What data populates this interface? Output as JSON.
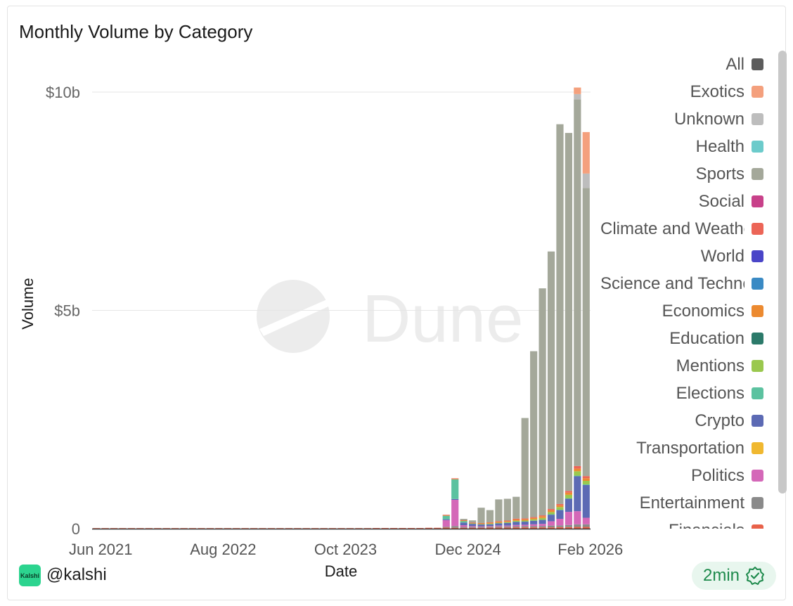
{
  "card": {
    "title": "Monthly Volume by Category",
    "footer_handle": "@kalshi",
    "logo_text": "Kalshi",
    "refresh_badge": "2min",
    "watermark_text": "Dune"
  },
  "chart_data": {
    "type": "bar",
    "stacked": true,
    "title": "Monthly Volume by Category",
    "xlabel": "Date",
    "ylabel": "Volume",
    "ylim": [
      0,
      10500000000
    ],
    "y_ticks": [
      {
        "value": 0,
        "label": "0"
      },
      {
        "value": 5000000000,
        "label": "$5b"
      },
      {
        "value": 10000000000,
        "label": "$10b"
      }
    ],
    "x_ticks": [
      "Jun 2021",
      "Aug 2022",
      "Oct 2023",
      "Dec 2024",
      "Feb 2026"
    ],
    "legend_position": "right",
    "grid": true,
    "categories": [
      "Jun 2021",
      "Jul 2021",
      "Aug 2021",
      "Sep 2021",
      "Oct 2021",
      "Nov 2021",
      "Dec 2021",
      "Jan 2022",
      "Feb 2022",
      "Mar 2022",
      "Apr 2022",
      "May 2022",
      "Jun 2022",
      "Jul 2022",
      "Aug 2022",
      "Sep 2022",
      "Oct 2022",
      "Nov 2022",
      "Dec 2022",
      "Jan 2023",
      "Feb 2023",
      "Mar 2023",
      "Apr 2023",
      "May 2023",
      "Jun 2023",
      "Jul 2023",
      "Aug 2023",
      "Sep 2023",
      "Oct 2023",
      "Nov 2023",
      "Dec 2023",
      "Jan 2024",
      "Feb 2024",
      "Mar 2024",
      "Apr 2024",
      "May 2024",
      "Jun 2024",
      "Jul 2024",
      "Aug 2024",
      "Sep 2024",
      "Oct 2024",
      "Nov 2024",
      "Dec 2024",
      "Jan 2025",
      "Feb 2025",
      "Mar 2025",
      "Apr 2025",
      "May 2025",
      "Jun 2025",
      "Jul 2025",
      "Aug 2025",
      "Sep 2025",
      "Oct 2025",
      "Nov 2025",
      "Dec 2025",
      "Jan 2026",
      "Feb 2026"
    ],
    "legend": [
      {
        "name": "All",
        "color": "#5c5c5c"
      },
      {
        "name": "Exotics",
        "color": "#f4a07d"
      },
      {
        "name": "Unknown",
        "color": "#bdbdbd"
      },
      {
        "name": "Health",
        "color": "#6ccbcb"
      },
      {
        "name": "Sports",
        "color": "#a4a89a"
      },
      {
        "name": "Social",
        "color": "#c8418a"
      },
      {
        "name": "Climate and Weather",
        "color": "#ec6557"
      },
      {
        "name": "World",
        "color": "#4a45c8"
      },
      {
        "name": "Science and Technology",
        "color": "#3a8ac4"
      },
      {
        "name": "Economics",
        "color": "#ec8a30"
      },
      {
        "name": "Education",
        "color": "#2c7a6a"
      },
      {
        "name": "Mentions",
        "color": "#9ac84e"
      },
      {
        "name": "Elections",
        "color": "#5cc2a0"
      },
      {
        "name": "Crypto",
        "color": "#5c6ab4"
      },
      {
        "name": "Transportation",
        "color": "#f0b830"
      },
      {
        "name": "Politics",
        "color": "#d468b8"
      },
      {
        "name": "Entertainment",
        "color": "#8a8a8a"
      },
      {
        "name": "Financials",
        "color": "#e8624a"
      }
    ],
    "series": [
      {
        "name": "Financials",
        "values": [
          5000000,
          5000000,
          5000000,
          5000000,
          5000000,
          5000000,
          5000000,
          5000000,
          5000000,
          5000000,
          5000000,
          5000000,
          5000000,
          5000000,
          8000000,
          8000000,
          8000000,
          8000000,
          8000000,
          8000000,
          8000000,
          8000000,
          8000000,
          10000000,
          10000000,
          10000000,
          10000000,
          10000000,
          12000000,
          12000000,
          12000000,
          12000000,
          15000000,
          15000000,
          15000000,
          15000000,
          15000000,
          15000000,
          20000000,
          20000000,
          25000000,
          20000000,
          20000000,
          20000000,
          20000000,
          25000000,
          25000000,
          25000000,
          30000000,
          30000000,
          30000000,
          30000000,
          30000000,
          35000000,
          35000000,
          40000000,
          40000000
        ]
      },
      {
        "name": "Entertainment",
        "values": [
          0,
          0,
          0,
          0,
          0,
          0,
          0,
          0,
          0,
          0,
          0,
          0,
          0,
          0,
          0,
          0,
          0,
          0,
          0,
          0,
          0,
          0,
          0,
          0,
          0,
          0,
          0,
          0,
          0,
          0,
          0,
          0,
          0,
          0,
          0,
          0,
          0,
          0,
          0,
          0,
          20000000,
          40000000,
          20000000,
          20000000,
          20000000,
          20000000,
          25000000,
          25000000,
          25000000,
          30000000,
          30000000,
          30000000,
          40000000,
          40000000,
          50000000,
          60000000,
          60000000
        ]
      },
      {
        "name": "Politics",
        "values": [
          0,
          0,
          0,
          0,
          0,
          0,
          0,
          0,
          0,
          0,
          0,
          0,
          0,
          0,
          0,
          0,
          0,
          0,
          0,
          0,
          0,
          0,
          0,
          0,
          0,
          0,
          0,
          0,
          0,
          0,
          0,
          0,
          0,
          0,
          0,
          0,
          0,
          0,
          0,
          0,
          150000000,
          600000000,
          40000000,
          20000000,
          15000000,
          15000000,
          20000000,
          20000000,
          30000000,
          30000000,
          40000000,
          50000000,
          100000000,
          150000000,
          300000000,
          300000000,
          150000000
        ]
      },
      {
        "name": "Crypto",
        "values": [
          0,
          0,
          0,
          0,
          0,
          0,
          0,
          0,
          0,
          0,
          0,
          0,
          0,
          0,
          0,
          0,
          0,
          0,
          0,
          0,
          0,
          0,
          0,
          0,
          0,
          0,
          0,
          0,
          0,
          0,
          0,
          0,
          0,
          0,
          0,
          0,
          0,
          0,
          0,
          0,
          20000000,
          20000000,
          60000000,
          50000000,
          40000000,
          40000000,
          50000000,
          60000000,
          70000000,
          70000000,
          80000000,
          90000000,
          150000000,
          200000000,
          300000000,
          800000000,
          750000000
        ]
      },
      {
        "name": "Elections",
        "values": [
          0,
          0,
          0,
          0,
          0,
          0,
          0,
          0,
          0,
          0,
          0,
          0,
          0,
          0,
          0,
          0,
          0,
          0,
          0,
          0,
          0,
          0,
          0,
          0,
          0,
          0,
          0,
          0,
          0,
          0,
          0,
          0,
          0,
          0,
          0,
          0,
          0,
          0,
          0,
          0,
          80000000,
          450000000,
          30000000,
          5000000,
          5000000,
          5000000,
          5000000,
          5000000,
          5000000,
          5000000,
          5000000,
          5000000,
          10000000,
          10000000,
          10000000,
          15000000,
          15000000
        ]
      },
      {
        "name": "Mentions",
        "values": [
          0,
          0,
          0,
          0,
          0,
          0,
          0,
          0,
          0,
          0,
          0,
          0,
          0,
          0,
          0,
          0,
          0,
          0,
          0,
          0,
          0,
          0,
          0,
          0,
          0,
          0,
          0,
          0,
          0,
          0,
          0,
          0,
          0,
          0,
          0,
          0,
          0,
          0,
          0,
          0,
          0,
          0,
          5000000,
          5000000,
          5000000,
          10000000,
          10000000,
          15000000,
          20000000,
          20000000,
          30000000,
          40000000,
          50000000,
          60000000,
          80000000,
          100000000,
          80000000
        ]
      },
      {
        "name": "Economics",
        "values": [
          0,
          0,
          0,
          0,
          0,
          0,
          0,
          0,
          0,
          0,
          0,
          0,
          0,
          0,
          0,
          0,
          0,
          0,
          0,
          0,
          0,
          0,
          0,
          0,
          0,
          0,
          0,
          0,
          0,
          0,
          0,
          0,
          0,
          0,
          0,
          0,
          0,
          0,
          0,
          0,
          10000000,
          10000000,
          10000000,
          10000000,
          15000000,
          20000000,
          20000000,
          20000000,
          30000000,
          30000000,
          30000000,
          40000000,
          40000000,
          40000000,
          50000000,
          60000000,
          60000000
        ]
      },
      {
        "name": "Climate and Weather",
        "values": [
          0,
          0,
          0,
          0,
          0,
          0,
          0,
          0,
          0,
          0,
          0,
          0,
          0,
          0,
          0,
          0,
          0,
          0,
          0,
          0,
          0,
          0,
          0,
          0,
          0,
          0,
          0,
          0,
          0,
          0,
          0,
          0,
          0,
          0,
          0,
          0,
          0,
          0,
          0,
          0,
          10000000,
          10000000,
          10000000,
          10000000,
          10000000,
          10000000,
          15000000,
          15000000,
          20000000,
          20000000,
          20000000,
          20000000,
          30000000,
          30000000,
          40000000,
          60000000,
          50000000
        ]
      },
      {
        "name": "Sports",
        "values": [
          0,
          0,
          0,
          0,
          0,
          0,
          0,
          0,
          0,
          0,
          0,
          0,
          0,
          0,
          0,
          0,
          0,
          0,
          0,
          0,
          0,
          0,
          0,
          0,
          0,
          0,
          0,
          0,
          0,
          0,
          0,
          0,
          0,
          0,
          0,
          0,
          0,
          0,
          0,
          0,
          0,
          0,
          30000000,
          50000000,
          350000000,
          280000000,
          500000000,
          500000000,
          500000000,
          2300000000,
          3800000000,
          5200000000,
          5900000000,
          8700000000,
          8200000000,
          8400000000,
          6600000000
        ]
      },
      {
        "name": "Unknown",
        "values": [
          0,
          0,
          0,
          0,
          0,
          0,
          0,
          0,
          0,
          0,
          0,
          0,
          0,
          0,
          0,
          0,
          0,
          0,
          0,
          0,
          0,
          0,
          0,
          0,
          0,
          0,
          0,
          0,
          0,
          0,
          0,
          0,
          0,
          0,
          0,
          0,
          0,
          0,
          0,
          0,
          0,
          0,
          0,
          0,
          0,
          0,
          0,
          0,
          0,
          0,
          0,
          0,
          0,
          0,
          0,
          120000000,
          330000000
        ]
      },
      {
        "name": "Exotics",
        "values": [
          0,
          0,
          0,
          0,
          0,
          0,
          0,
          0,
          0,
          0,
          0,
          0,
          0,
          0,
          0,
          0,
          0,
          0,
          0,
          0,
          0,
          0,
          0,
          0,
          0,
          0,
          0,
          0,
          0,
          0,
          0,
          0,
          0,
          0,
          0,
          0,
          0,
          0,
          0,
          0,
          0,
          0,
          0,
          0,
          0,
          0,
          0,
          0,
          0,
          0,
          0,
          0,
          0,
          0,
          0,
          150000000,
          950000000
        ]
      }
    ]
  }
}
